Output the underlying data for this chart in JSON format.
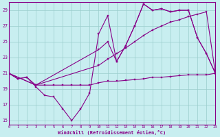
{
  "xlabel": "Windchill (Refroidissement éolien,°C)",
  "xlim": [
    0,
    23
  ],
  "ylim": [
    14.5,
    30.0
  ],
  "yticks": [
    15,
    17,
    19,
    21,
    23,
    25,
    27,
    29
  ],
  "xticks": [
    0,
    1,
    2,
    3,
    4,
    5,
    6,
    7,
    8,
    9,
    10,
    11,
    12,
    13,
    14,
    15,
    16,
    17,
    18,
    19,
    20,
    21,
    22,
    23
  ],
  "bg_color": "#c8eef0",
  "grid_color": "#99cccc",
  "line_color": "#880088",
  "lines": [
    {
      "x": [
        0,
        1,
        2,
        3,
        4,
        5,
        6,
        7,
        8,
        9,
        10,
        11,
        12,
        13,
        14,
        15,
        16,
        17,
        18,
        19,
        20,
        21,
        22,
        23
      ],
      "y": [
        21.0,
        20.3,
        20.5,
        19.5,
        19.5,
        19.5,
        19.5,
        19.5,
        19.5,
        19.5,
        19.8,
        20.0,
        20.0,
        20.1,
        20.2,
        20.3,
        20.5,
        20.5,
        20.6,
        20.7,
        20.8,
        20.8,
        20.8,
        21.0
      ]
    },
    {
      "x": [
        0,
        3,
        10,
        11,
        12,
        13,
        14,
        15,
        16,
        17,
        18,
        19,
        20,
        21,
        22,
        23
      ],
      "y": [
        21.0,
        19.5,
        22.0,
        22.8,
        23.5,
        24.2,
        25.0,
        25.8,
        26.5,
        27.0,
        27.5,
        27.8,
        28.2,
        28.5,
        28.8,
        21.0
      ]
    },
    {
      "x": [
        0,
        3,
        10,
        11,
        12,
        13,
        14,
        15,
        16,
        17,
        18,
        19,
        20,
        21,
        22,
        23
      ],
      "y": [
        21.0,
        19.5,
        24.0,
        25.0,
        22.5,
        24.5,
        27.0,
        29.8,
        29.0,
        29.2,
        28.8,
        29.0,
        29.0,
        25.5,
        23.5,
        21.0
      ]
    },
    {
      "x": [
        0,
        1,
        2,
        3,
        4,
        5,
        6,
        7,
        8,
        9,
        10,
        11,
        12,
        13,
        14,
        15,
        16,
        17,
        18,
        19,
        20,
        21,
        22,
        23
      ],
      "y": [
        21.0,
        20.3,
        20.5,
        19.3,
        18.2,
        18.0,
        16.5,
        15.0,
        16.5,
        18.5,
        26.0,
        28.3,
        22.5,
        24.5,
        27.0,
        29.8,
        29.0,
        29.2,
        28.8,
        29.0,
        29.0,
        25.5,
        23.5,
        21.0
      ]
    }
  ]
}
